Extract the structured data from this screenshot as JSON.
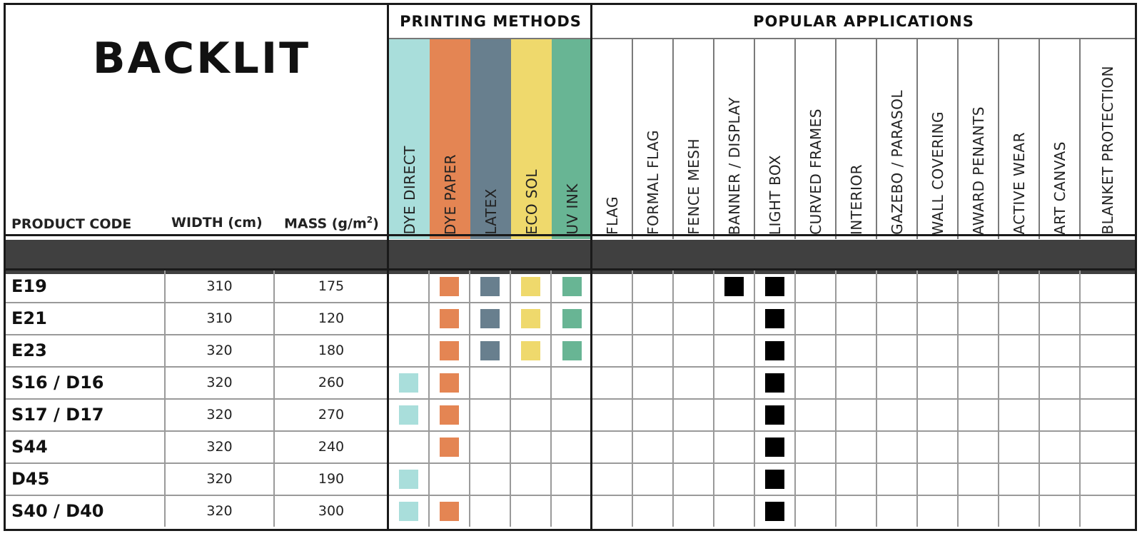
{
  "title": "BACKLIT",
  "columns": {
    "product_code": "PRODUCT CODE",
    "width": "WIDTH (cm)",
    "mass": "MASS (g/m²)"
  },
  "printing_methods": {
    "heading": "PRINTING METHODS",
    "items": [
      {
        "label": "DYE DIRECT",
        "color": "#a9dedb"
      },
      {
        "label": "DYE PAPER",
        "color": "#e48553"
      },
      {
        "label": "LATEX",
        "color": "#687f8e"
      },
      {
        "label": "ECO SOL",
        "color": "#efd96c"
      },
      {
        "label": "UV INK",
        "color": "#68b594"
      }
    ]
  },
  "popular_applications": {
    "heading": "POPULAR APPLICATIONS",
    "items": [
      "FLAG",
      "FORMAL FLAG",
      "FENCE MESH",
      "BANNER / DISPLAY",
      "LIGHT BOX",
      "CURVED FRAMES",
      "INTERIOR",
      "GAZEBO / PARASOL",
      "WALL COVERING",
      "AWARD PENANTS",
      "ACTIVE WEAR",
      "ART CANVAS",
      "BLANKET PROTECTION"
    ],
    "mark_color": "#000000"
  },
  "rows": [
    {
      "code": "E19",
      "width": "310",
      "mass": "175",
      "methods": [
        false,
        true,
        true,
        true,
        true
      ],
      "applications": [
        false,
        false,
        false,
        true,
        true,
        false,
        false,
        false,
        false,
        false,
        false,
        false,
        false
      ]
    },
    {
      "code": "E21",
      "width": "310",
      "mass": "120",
      "methods": [
        false,
        true,
        true,
        true,
        true
      ],
      "applications": [
        false,
        false,
        false,
        false,
        true,
        false,
        false,
        false,
        false,
        false,
        false,
        false,
        false
      ]
    },
    {
      "code": "E23",
      "width": "320",
      "mass": "180",
      "methods": [
        false,
        true,
        true,
        true,
        true
      ],
      "applications": [
        false,
        false,
        false,
        false,
        true,
        false,
        false,
        false,
        false,
        false,
        false,
        false,
        false
      ]
    },
    {
      "code": "S16 / D16",
      "width": "320",
      "mass": "260",
      "methods": [
        true,
        true,
        false,
        false,
        false
      ],
      "applications": [
        false,
        false,
        false,
        false,
        true,
        false,
        false,
        false,
        false,
        false,
        false,
        false,
        false
      ]
    },
    {
      "code": "S17 / D17",
      "width": "320",
      "mass": "270",
      "methods": [
        true,
        true,
        false,
        false,
        false
      ],
      "applications": [
        false,
        false,
        false,
        false,
        true,
        false,
        false,
        false,
        false,
        false,
        false,
        false,
        false
      ]
    },
    {
      "code": "S44",
      "width": "320",
      "mass": "240",
      "methods": [
        false,
        true,
        false,
        false,
        false
      ],
      "applications": [
        false,
        false,
        false,
        false,
        true,
        false,
        false,
        false,
        false,
        false,
        false,
        false,
        false
      ]
    },
    {
      "code": "D45",
      "width": "320",
      "mass": "190",
      "methods": [
        true,
        false,
        false,
        false,
        false
      ],
      "applications": [
        false,
        false,
        false,
        false,
        true,
        false,
        false,
        false,
        false,
        false,
        false,
        false,
        false
      ]
    },
    {
      "code": "S40 / D40",
      "width": "320",
      "mass": "300",
      "methods": [
        true,
        true,
        false,
        false,
        false
      ],
      "applications": [
        false,
        false,
        false,
        false,
        true,
        false,
        false,
        false,
        false,
        false,
        false,
        false,
        false
      ]
    }
  ]
}
